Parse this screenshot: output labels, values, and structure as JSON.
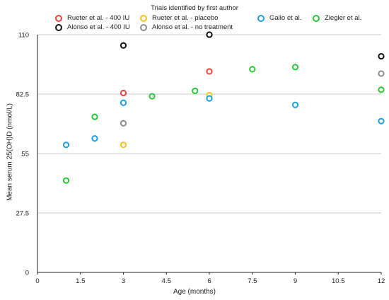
{
  "chart_data": {
    "type": "scatter",
    "title": "",
    "legend_title": "Trials identified by first author",
    "xlabel": "Age (months)",
    "ylabel": "Mean serum 25(OH)D (nmol/L)",
    "xlim": [
      0,
      12
    ],
    "ylim": [
      0,
      110
    ],
    "xticks": [
      "0",
      "1.5",
      "3",
      "4.5",
      "6",
      "7.5",
      "9",
      "10.5",
      "12"
    ],
    "yticks": [
      "0",
      "27.5",
      "55",
      "82.5",
      "110"
    ],
    "grid": "horizontal",
    "legend_position": "top",
    "series": [
      {
        "name": "Rueter et al. - 400 IU",
        "color": "#e8453c",
        "points": [
          [
            3,
            83
          ],
          [
            6,
            93
          ]
        ]
      },
      {
        "name": "Alonso et al. - 400 IU",
        "color": "#111111",
        "points": [
          [
            3,
            105
          ],
          [
            6,
            110
          ],
          [
            12,
            100
          ]
        ]
      },
      {
        "name": "Rueter et al. - placebo",
        "color": "#f2c21b",
        "points": [
          [
            3,
            59
          ],
          [
            6,
            82
          ]
        ]
      },
      {
        "name": "Alonso et al. - no treatment",
        "color": "#8c8c8c",
        "points": [
          [
            3,
            69
          ],
          [
            12,
            92
          ]
        ]
      },
      {
        "name": "Gallo et al.",
        "color": "#1ea0e0",
        "points": [
          [
            1,
            59
          ],
          [
            2,
            62
          ],
          [
            3,
            78.5
          ],
          [
            6,
            80.5
          ],
          [
            9,
            77.5
          ],
          [
            12,
            70
          ]
        ]
      },
      {
        "name": "Ziegler et al.",
        "color": "#2bc63a",
        "points": [
          [
            1,
            42.5
          ],
          [
            2,
            72
          ],
          [
            4,
            81.5
          ],
          [
            5.5,
            84
          ],
          [
            7.5,
            94
          ],
          [
            9,
            95
          ],
          [
            12,
            84.5
          ]
        ]
      }
    ]
  }
}
